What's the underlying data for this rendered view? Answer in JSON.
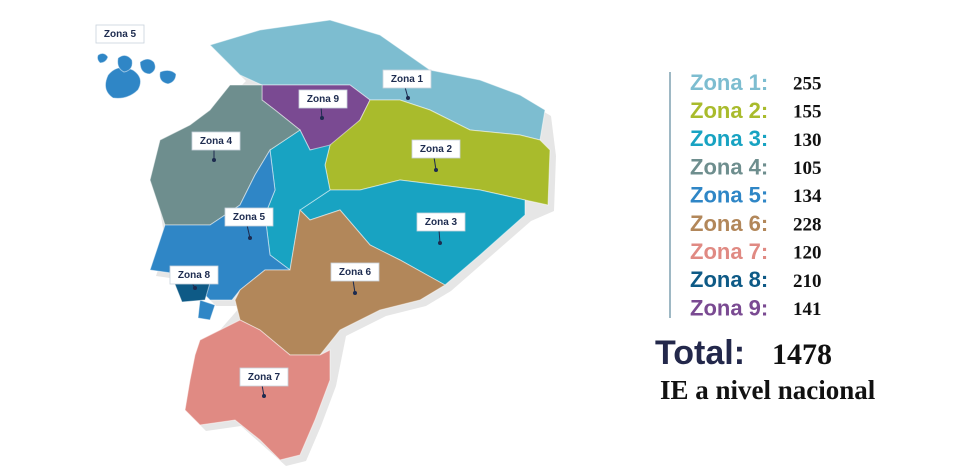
{
  "map": {
    "labels": [
      "Zona 5",
      "Zona 1",
      "Zona 9",
      "Zona 4",
      "Zona 2",
      "Zona 5",
      "Zona 3",
      "Zona 8",
      "Zona 6",
      "Zona 7"
    ]
  },
  "legend": [
    {
      "label": "Zona 1:",
      "count": 255,
      "color": "#7dbdd0"
    },
    {
      "label": "Zona 2:",
      "count": 155,
      "color": "#a9bb2c"
    },
    {
      "label": "Zona 3:",
      "count": 130,
      "color": "#18a3c2"
    },
    {
      "label": "Zona 4:",
      "count": 105,
      "color": "#6e8e8e"
    },
    {
      "label": "Zona 5:",
      "count": 134,
      "color": "#2f86c6"
    },
    {
      "label": "Zona 6:",
      "count": 228,
      "color": "#b2875a"
    },
    {
      "label": "Zona 7:",
      "count": 120,
      "color": "#e08a83"
    },
    {
      "label": "Zona 8:",
      "count": 210,
      "color": "#0e5a86"
    },
    {
      "label": "Zona 9:",
      "count": 141,
      "color": "#7a4a92"
    }
  ],
  "total": {
    "label": "Total:",
    "value": 1478
  },
  "caption": "IE a nivel nacional"
}
